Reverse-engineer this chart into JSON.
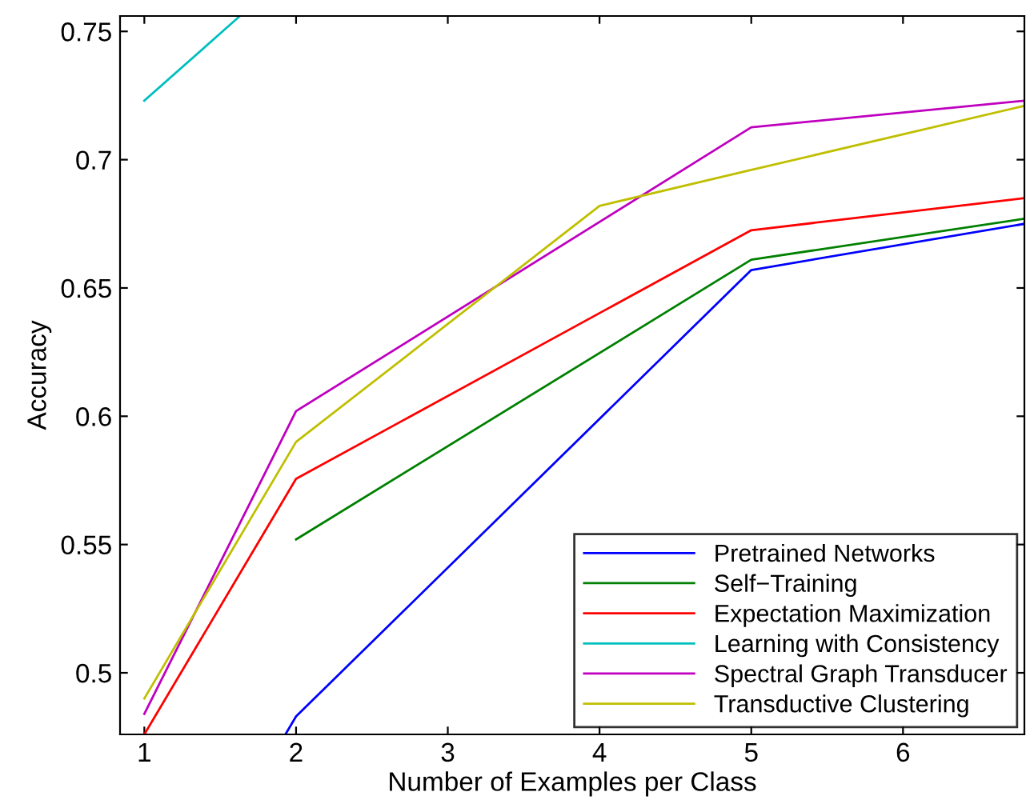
{
  "chart_data": {
    "type": "line",
    "xlabel": "Number of Examples per Class",
    "ylabel": "Accuracy",
    "xlim": [
      0.84,
      6.8
    ],
    "ylim": [
      0.476,
      0.756
    ],
    "xticks": [
      1,
      2,
      3,
      4,
      5,
      6
    ],
    "yticks": [
      0.5,
      0.55,
      0.6,
      0.65,
      0.7,
      0.75
    ],
    "grid": false,
    "legend": "bottom right",
    "marker": "none",
    "line_style": "solid",
    "series": [
      {
        "name": "Pretrained Networks",
        "color": "#0000ff",
        "x": [
          1.93,
          2,
          5,
          6.8
        ],
        "values": [
          0.476,
          0.483,
          0.657,
          0.675
        ]
      },
      {
        "name": "Self−Training",
        "color": "#008000",
        "x": [
          2,
          5,
          6.8
        ],
        "values": [
          0.552,
          0.661,
          0.677
        ]
      },
      {
        "name": "Expectation Maximization",
        "color": "#ff0000",
        "x": [
          1,
          2,
          5,
          6.8
        ],
        "values": [
          0.476,
          0.5756,
          0.6725,
          0.685
        ]
      },
      {
        "name": "Learning with Consistency",
        "color": "#00bfbf",
        "x": [
          1,
          1.63
        ],
        "values": [
          0.723,
          0.756
        ]
      },
      {
        "name": "Spectral Graph Transducer",
        "color": "#bf00bf",
        "x": [
          1,
          2,
          5,
          6.8
        ],
        "values": [
          0.484,
          0.602,
          0.7126,
          0.723
        ]
      },
      {
        "name": "Transductive Clustering",
        "color": "#bfbf00",
        "x": [
          1,
          2,
          4,
          5,
          6.8
        ],
        "values": [
          0.49,
          0.59,
          0.682,
          0.696,
          0.721
        ]
      }
    ]
  }
}
